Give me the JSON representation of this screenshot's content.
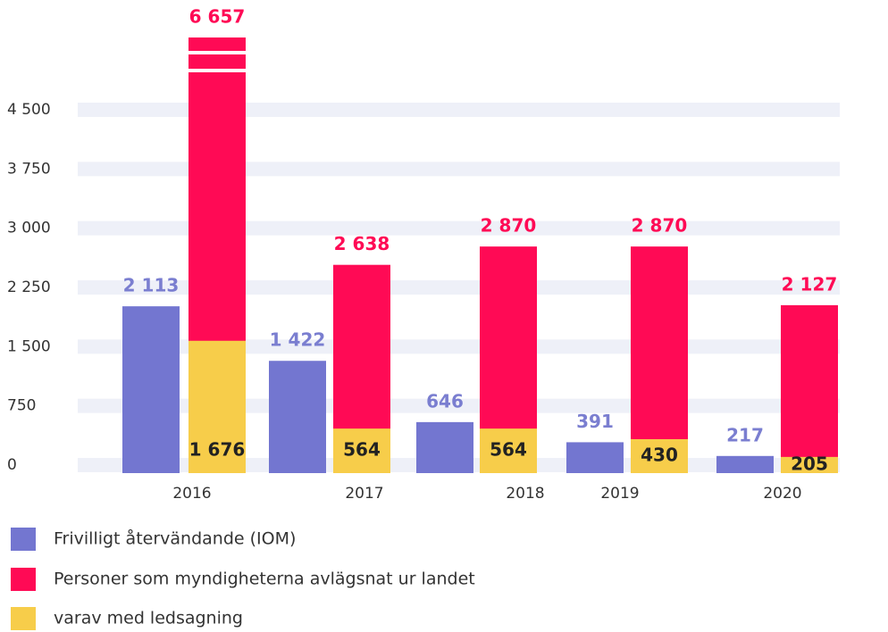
{
  "chart_data": {
    "type": "bar",
    "categories": [
      "2016",
      "2017",
      "2018",
      "2019",
      "2020"
    ],
    "series": [
      {
        "name": "Frivilligt återvändande (IOM)",
        "color": "#7376d0",
        "values": [
          2113,
          1422,
          646,
          391,
          217
        ],
        "value_labels": [
          "2 113",
          "1 422",
          "646",
          "391",
          "217"
        ]
      },
      {
        "name": "Personer som myndigheterna avlägsnat ur landet",
        "color": "#ff0a55",
        "values": [
          6657,
          2638,
          2870,
          2870,
          2127
        ],
        "value_labels": [
          "6 657",
          "2 638",
          "2 870",
          "2 870",
          "2 127"
        ]
      },
      {
        "name": "varav med ledsagning",
        "color": "#f7cd4a",
        "values": [
          1676,
          564,
          564,
          430,
          205
        ],
        "value_labels": [
          "1 676",
          "564",
          "564",
          "430",
          "205"
        ]
      }
    ],
    "ylim": [
      0,
      4500
    ],
    "yticks": [
      0,
      750,
      {
        "value": 1500,
        "label": "1 500"
      },
      {
        "value": 2250,
        "label": "2 250"
      },
      {
        "value": 3000,
        "label": "3 000"
      },
      {
        "value": 3750,
        "label": "3 750"
      },
      {
        "value": 4500,
        "label": "4 500"
      }
    ],
    "grid": true
  }
}
